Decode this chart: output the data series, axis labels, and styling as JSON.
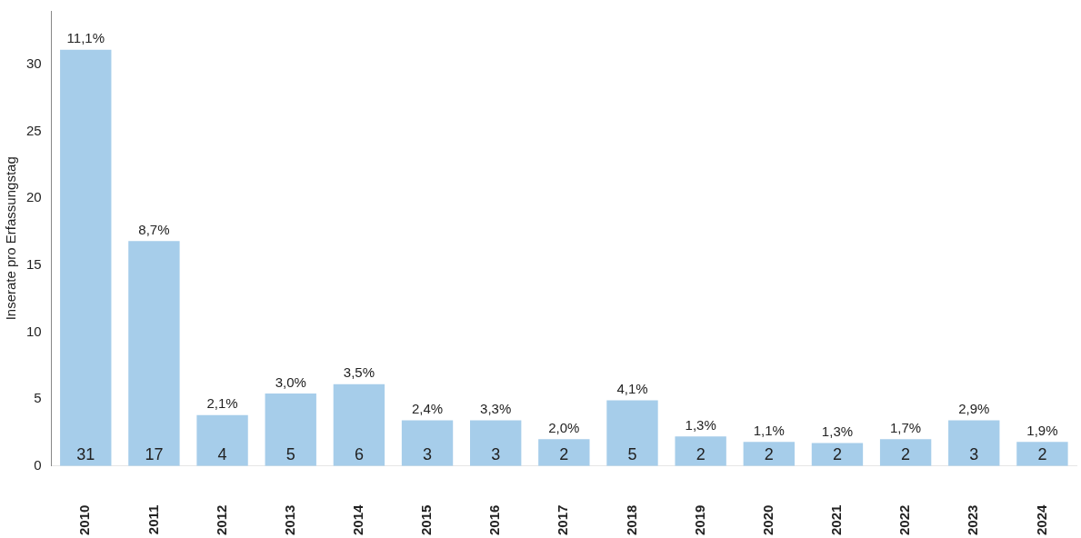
{
  "chart_data": {
    "type": "bar",
    "ylabel": "Inserate pro Erfassungstag",
    "categories": [
      "2010",
      "2011",
      "2012",
      "2013",
      "2014",
      "2015",
      "2016",
      "2017",
      "2018",
      "2019",
      "2020",
      "2021",
      "2022",
      "2023",
      "2024"
    ],
    "values": [
      31.1,
      16.8,
      3.8,
      5.4,
      6.1,
      3.4,
      3.4,
      2.0,
      4.9,
      2.2,
      1.8,
      1.7,
      2.0,
      3.4,
      1.8
    ],
    "value_labels": [
      "31",
      "17",
      "4",
      "5",
      "6",
      "3",
      "3",
      "2",
      "5",
      "2",
      "2",
      "2",
      "2",
      "3",
      "2"
    ],
    "color": "#a6cdea",
    "ylim": [
      0,
      34
    ],
    "yticks": [
      0,
      5,
      10,
      15,
      20,
      25,
      30
    ],
    "grid": false,
    "annotations": [
      {
        "text": "11,1%",
        "x": "2010",
        "y": 31.1
      },
      {
        "text": "8,7%",
        "x": "2011",
        "y": 16.8
      },
      {
        "text": "2,1%",
        "x": "2012",
        "y": 3.8
      },
      {
        "text": "3,0%",
        "x": "2013",
        "y": 5.4
      },
      {
        "text": "3,5%",
        "x": "2014",
        "y": 6.1
      },
      {
        "text": "2,4%",
        "x": "2015",
        "y": 3.4
      },
      {
        "text": "3,3%",
        "x": "2016",
        "y": 3.4
      },
      {
        "text": "2,0%",
        "x": "2017",
        "y": 2.0
      },
      {
        "text": "4,1%",
        "x": "2018",
        "y": 4.9
      },
      {
        "text": "1,3%",
        "x": "2019",
        "y": 2.2
      },
      {
        "text": "1,1%",
        "x": "2020",
        "y": 1.8
      },
      {
        "text": "1,3%",
        "x": "2021",
        "y": 1.7
      },
      {
        "text": "1,7%",
        "x": "2022",
        "y": 2.0
      },
      {
        "text": "2,9%",
        "x": "2023",
        "y": 3.4
      },
      {
        "text": "1,9%",
        "x": "2024",
        "y": 1.8
      }
    ]
  }
}
